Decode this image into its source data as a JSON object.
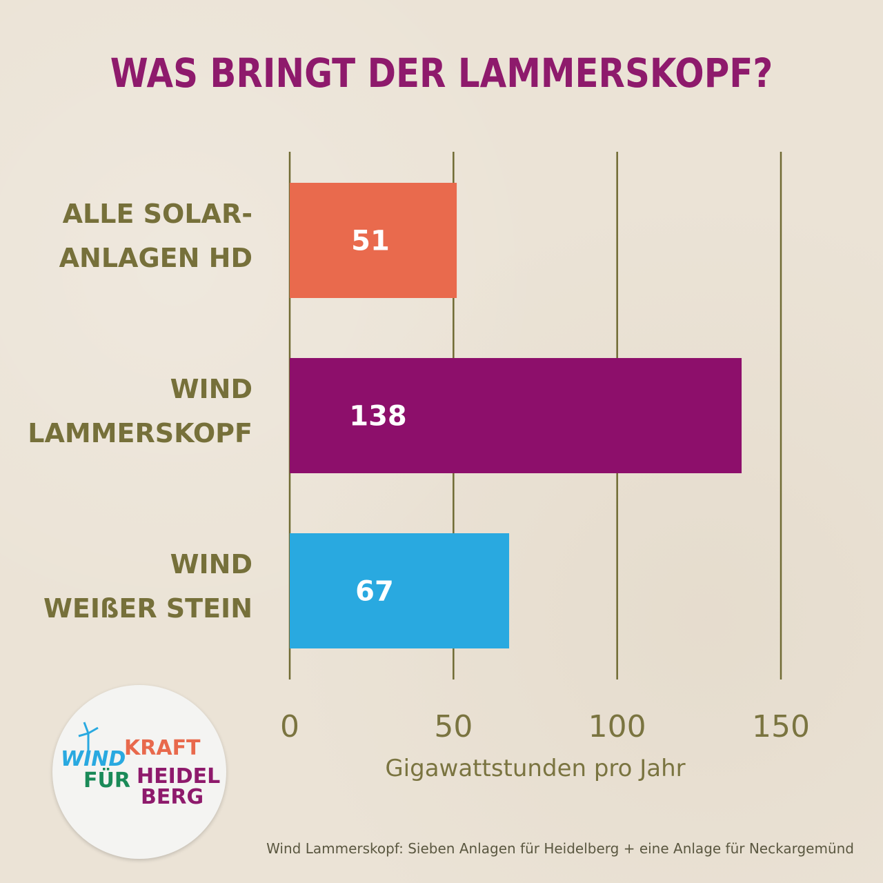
{
  "chart_data": {
    "type": "bar",
    "orientation": "horizontal",
    "title": "WAS BRINGT DER LAMMERSKOPF?",
    "categories": [
      [
        "ALLE SOLAR-",
        "ANLAGEN HD"
      ],
      [
        "WIND",
        "LAMMERSKOPF"
      ],
      [
        "WIND",
        "WEIßER STEIN"
      ]
    ],
    "values": [
      51,
      138,
      67
    ],
    "colors": [
      "#e96a4d",
      "#8d0f6b",
      "#29a9e0"
    ],
    "xlabel": "Gigawattstunden pro Jahr",
    "xlim": [
      0,
      150
    ],
    "xticks": [
      0,
      50,
      100,
      150
    ],
    "grid": true,
    "grid_color": "#6f6a32"
  },
  "footnote": "Wind Lammerskopf: Sieben Anlagen für Heidelberg + eine Anlage für Neckargemünd",
  "logo": {
    "line1a": "WIND",
    "line1b": "KRAFT",
    "line2a": "FÜR",
    "line2b": "HEIDEL",
    "line3": "BERG"
  }
}
